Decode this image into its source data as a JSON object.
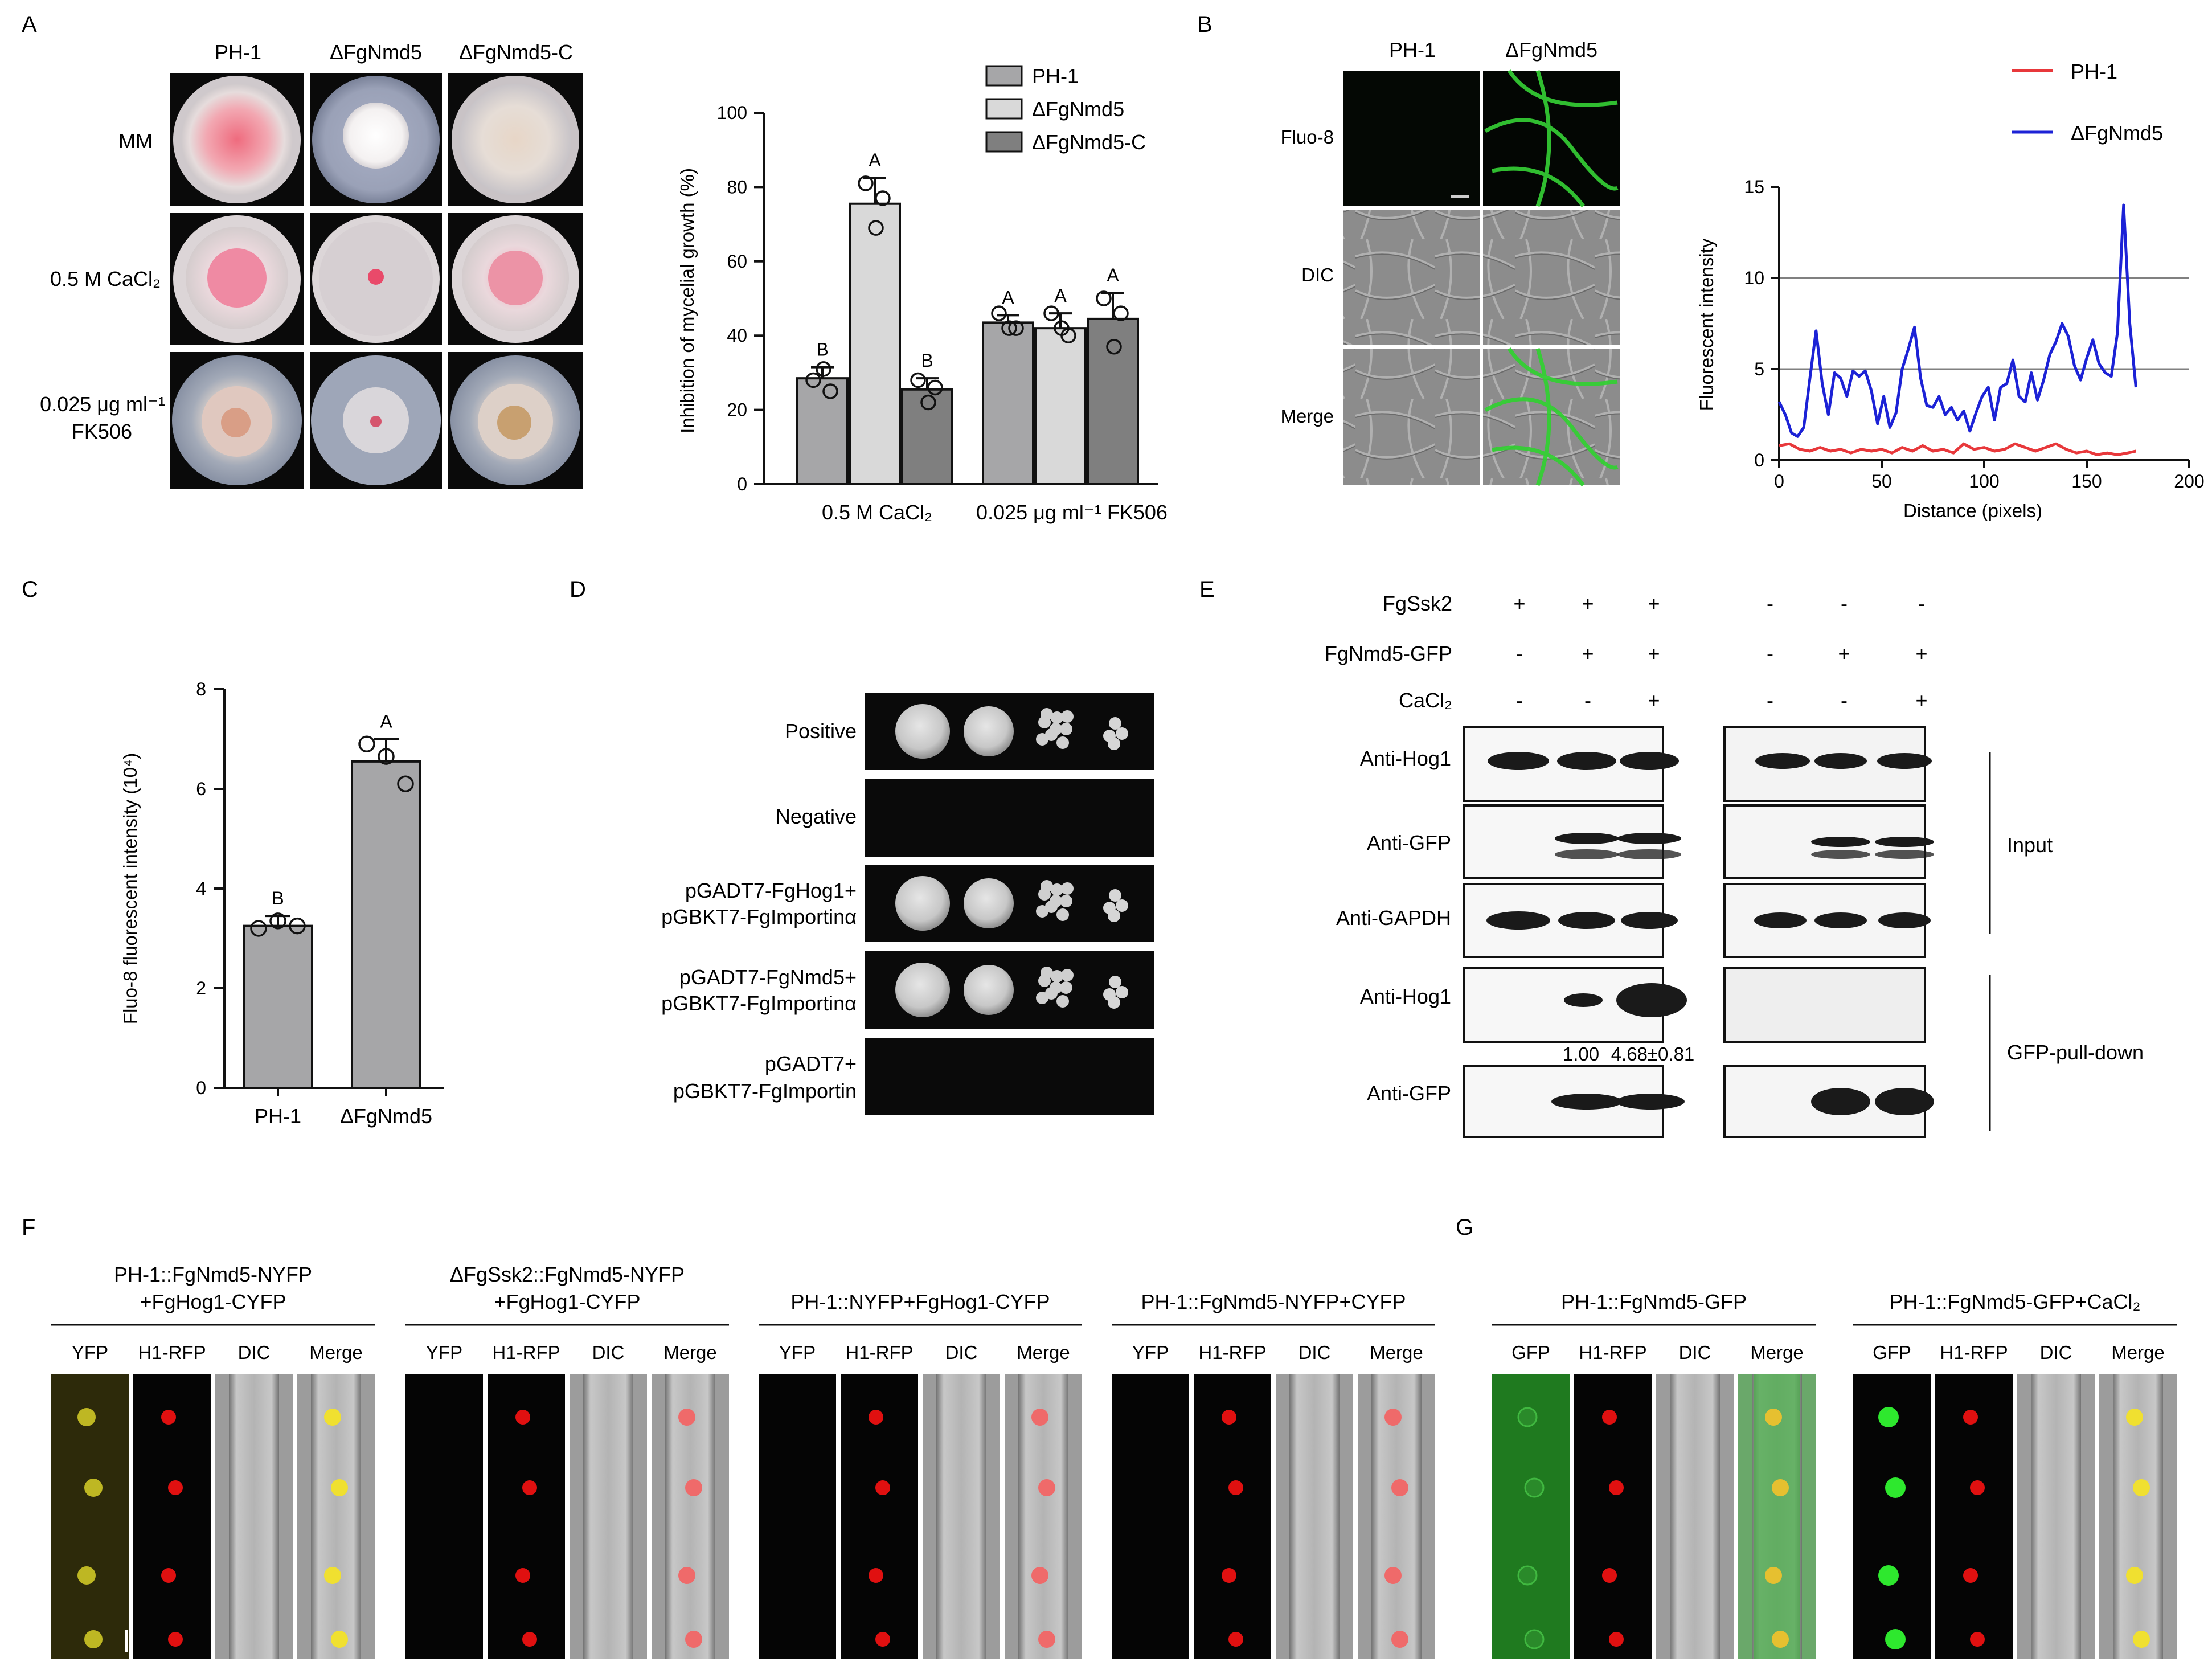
{
  "panel_labels": [
    "A",
    "B",
    "C",
    "D",
    "E",
    "F",
    "G"
  ],
  "panelA": {
    "columns": [
      "PH-1",
      "ΔFgNmd5",
      "ΔFgNmd5-C"
    ],
    "rows": [
      {
        "label": "MM"
      },
      {
        "label": "0.5 M CaCl₂"
      },
      {
        "label_line1": "0.025 μg ml⁻¹",
        "label_line2": "FK506"
      }
    ]
  },
  "panelB": {
    "columns": [
      "PH-1",
      "ΔFgNmd5"
    ],
    "rows": [
      "Fluo-8",
      "DIC",
      "Merge"
    ]
  },
  "panelD": {
    "rows": [
      {
        "line1": "Positive",
        "line2": "",
        "growth": "full"
      },
      {
        "line1": "Negative",
        "line2": "",
        "growth": "none"
      },
      {
        "line1": "pGADT7-FgHog1+",
        "line2": "pGBKT7-FgImportinα",
        "growth": "full"
      },
      {
        "line1": "pGADT7-FgNmd5+",
        "line2": "pGBKT7-FgImportinα",
        "growth": "full"
      },
      {
        "line1": "pGADT7+",
        "line2": "pGBKT7-FgImportin",
        "growth": "none"
      }
    ]
  },
  "panelE": {
    "conditions": [
      {
        "label": "FgSsk2",
        "signs": [
          "+",
          "+",
          "+",
          "-",
          "-",
          "-"
        ]
      },
      {
        "label": "FgNmd5-GFP",
        "signs": [
          "-",
          "+",
          "+",
          "-",
          "+",
          "+"
        ]
      },
      {
        "label": "CaCl₂",
        "signs": [
          "-",
          "-",
          "+",
          "-",
          "-",
          "+"
        ]
      }
    ],
    "blots": [
      "Anti-Hog1",
      "Anti-GFP",
      "Anti-GAPDH",
      "Anti-Hog1",
      "Anti-GFP"
    ],
    "group_input": "Input",
    "group_pulldown": "GFP-pull-down",
    "quant": [
      "1.00",
      "4.68±0.81"
    ]
  },
  "panelF": {
    "groups": [
      {
        "title1": "PH-1::FgNmd5-NYFP",
        "title2": "+FgHog1-CYFP"
      },
      {
        "title1": "ΔFgSsk2::FgNmd5-NYFP",
        "title2": "+FgHog1-CYFP"
      },
      {
        "title1": "PH-1::NYFP+FgHog1-CYFP",
        "title2": ""
      },
      {
        "title1": "PH-1::FgNmd5-NYFP+CYFP",
        "title2": ""
      }
    ],
    "channels": [
      "YFP",
      "H1-RFP",
      "DIC",
      "Merge"
    ]
  },
  "panelG": {
    "groups": [
      {
        "title1": "PH-1::FgNmd5-GFP"
      },
      {
        "title1": "PH-1::FgNmd5-GFP+CaCl₂"
      }
    ],
    "channels": [
      "GFP",
      "H1-RFP",
      "DIC",
      "Merge"
    ]
  },
  "chart_data": [
    {
      "panel": "A",
      "type": "bar",
      "categories": [
        "0.5 M CaCl₂",
        "0.025 μg ml⁻¹ FK506"
      ],
      "series": [
        {
          "name": "PH-1",
          "values": [
            28.5,
            43.5
          ],
          "points": [
            [
              28,
              25,
              31
            ],
            [
              46,
              42,
              42
            ]
          ],
          "sd": [
            3,
            2
          ],
          "color": "#a6a6a8"
        },
        {
          "name": "ΔFgNmd5",
          "values": [
            75.5,
            42
          ],
          "points": [
            [
              81,
              77,
              69
            ],
            [
              46,
              40,
              42
            ]
          ],
          "sd": [
            7,
            4
          ],
          "color": "#d9d9d9"
        },
        {
          "name": "ΔFgNmd5-C",
          "values": [
            25.5,
            44.5
          ],
          "points": [
            [
              28,
              26,
              22
            ],
            [
              50,
              46,
              37
            ]
          ],
          "sd": [
            3,
            7
          ],
          "color": "#7f7f7f"
        }
      ],
      "letters": [
        [
          "B",
          "A",
          "B"
        ],
        [
          "A",
          "A",
          "A"
        ]
      ],
      "ylabel": "Inhibition of mycelial growth (%)",
      "ylim": [
        0,
        100
      ],
      "yticks": [
        0,
        20,
        40,
        60,
        80,
        100
      ]
    },
    {
      "panel": "B",
      "type": "line",
      "xlabel": "Distance (pixels)",
      "ylabel": "Fluorescent intensity",
      "xlim": [
        0,
        200
      ],
      "ylim": [
        0,
        15
      ],
      "xticks": [
        0,
        50,
        100,
        150,
        200
      ],
      "yticks": [
        0,
        5,
        10,
        15
      ],
      "grid_y": [
        5,
        10
      ],
      "series": [
        {
          "name": "PH-1",
          "color": "#e8383b",
          "x": [
            0,
            5,
            10,
            15,
            20,
            25,
            30,
            35,
            40,
            45,
            50,
            55,
            60,
            65,
            70,
            75,
            80,
            85,
            90,
            95,
            100,
            105,
            110,
            115,
            120,
            125,
            130,
            135,
            140,
            145,
            150,
            155,
            160,
            165,
            170,
            174
          ],
          "y": [
            0.8,
            0.9,
            0.6,
            0.5,
            0.7,
            0.5,
            0.6,
            0.4,
            0.6,
            0.5,
            0.6,
            0.4,
            0.7,
            0.5,
            0.8,
            0.5,
            0.6,
            0.4,
            0.9,
            0.6,
            0.7,
            0.5,
            0.6,
            0.9,
            0.7,
            0.5,
            0.7,
            0.9,
            0.6,
            0.4,
            0.5,
            0.3,
            0.4,
            0.3,
            0.4,
            0.5
          ]
        },
        {
          "name": "ΔFgNmd5",
          "color": "#1c22d6",
          "x": [
            0,
            3,
            6,
            9,
            12,
            15,
            18,
            21,
            24,
            27,
            30,
            33,
            36,
            39,
            42,
            45,
            48,
            51,
            54,
            57,
            60,
            63,
            66,
            69,
            72,
            75,
            78,
            81,
            84,
            87,
            90,
            93,
            96,
            99,
            102,
            105,
            108,
            111,
            114,
            117,
            120,
            123,
            126,
            129,
            132,
            135,
            138,
            141,
            144,
            147,
            150,
            153,
            156,
            159,
            162,
            165,
            168,
            171,
            174
          ],
          "y": [
            3.2,
            2.5,
            1.5,
            1.3,
            1.8,
            4.5,
            7.1,
            4.2,
            2.5,
            4.8,
            4.5,
            3.5,
            4.9,
            4.6,
            4.9,
            3.8,
            2.0,
            3.5,
            1.8,
            2.6,
            5.0,
            6.1,
            7.3,
            4.5,
            3.0,
            2.9,
            3.5,
            2.5,
            2.9,
            2.2,
            2.7,
            1.6,
            2.6,
            3.5,
            4.0,
            2.2,
            4.0,
            4.2,
            5.5,
            3.5,
            3.2,
            4.8,
            3.3,
            4.4,
            5.8,
            6.5,
            7.5,
            6.8,
            5.2,
            4.4,
            5.6,
            6.6,
            5.3,
            4.8,
            4.6,
            7.0,
            14.0,
            7.5,
            4.0
          ]
        }
      ]
    },
    {
      "panel": "C",
      "type": "bar",
      "categories": [
        "PH-1",
        "ΔFgNmd5"
      ],
      "values": [
        3.25,
        6.55
      ],
      "sd": [
        0.2,
        0.45
      ],
      "points": [
        [
          3.2,
          3.35,
          3.25
        ],
        [
          6.9,
          6.65,
          6.1
        ]
      ],
      "letters": [
        "B",
        "A"
      ],
      "color": "#a6a6a8",
      "ylabel": "Fluo-8 fluorescent intensity (10⁴)",
      "ylim": [
        0,
        8
      ],
      "yticks": [
        0,
        2,
        4,
        6,
        8
      ]
    }
  ]
}
